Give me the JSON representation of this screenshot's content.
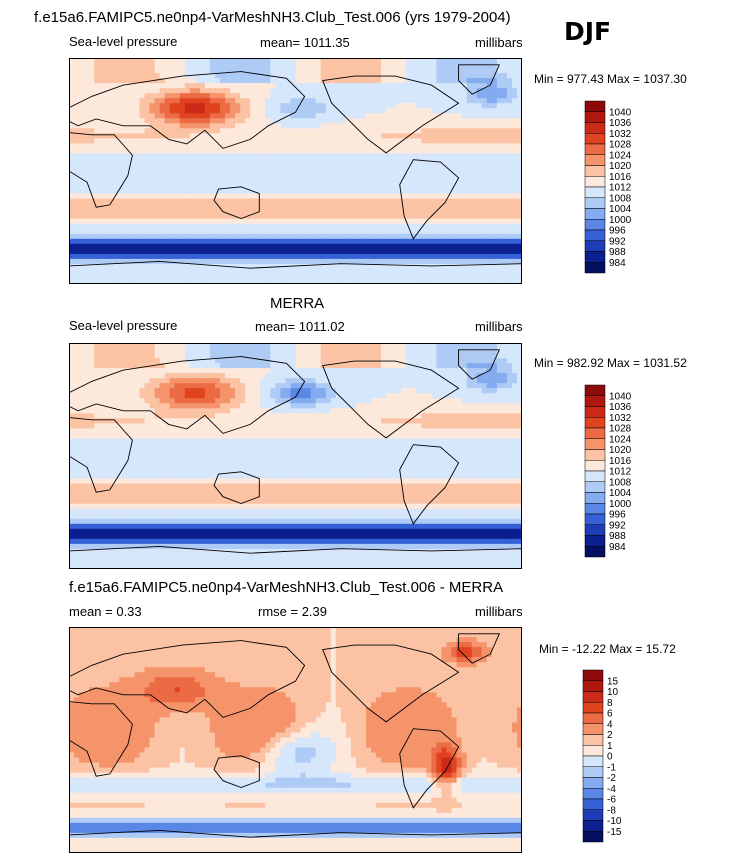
{
  "season": "DJF",
  "main_title": "f.e15a6.FAMIPC5.ne0np4-VarMeshNH3.Club_Test.006 (yrs 1979-2004)",
  "chart_data": [
    {
      "type": "heatmap",
      "id": "model",
      "title": "",
      "variable": "Sea-level pressure",
      "mean_label": "mean= 1011.35",
      "units": "millibars",
      "stats": "Min = 977.43 Max = 1037.30",
      "levels": [
        "1040",
        "1036",
        "1032",
        "1028",
        "1024",
        "1020",
        "1016",
        "1012",
        "1008",
        "1004",
        "1000",
        "996",
        "992",
        "988",
        "984"
      ],
      "colors": [
        "#8c0a0a",
        "#b0170e",
        "#cc2a18",
        "#e0441f",
        "#ec6a44",
        "#f5946b",
        "#fbc2a4",
        "#fde8dc",
        "#d6e6fb",
        "#aecbf5",
        "#84abef",
        "#5a86e6",
        "#3560d6",
        "#1d3cb6",
        "#0b1f8f",
        "#04105f"
      ]
    },
    {
      "type": "heatmap",
      "id": "obs",
      "title": "MERRA",
      "variable": "Sea-level pressure",
      "mean_label": "mean= 1011.02",
      "units": "millibars",
      "stats": "Min = 982.92 Max = 1031.52",
      "levels": [
        "1040",
        "1036",
        "1032",
        "1028",
        "1024",
        "1020",
        "1016",
        "1012",
        "1008",
        "1004",
        "1000",
        "996",
        "992",
        "988",
        "984"
      ],
      "colors": [
        "#8c0a0a",
        "#b0170e",
        "#cc2a18",
        "#e0441f",
        "#ec6a44",
        "#f5946b",
        "#fbc2a4",
        "#fde8dc",
        "#d6e6fb",
        "#aecbf5",
        "#84abef",
        "#5a86e6",
        "#3560d6",
        "#1d3cb6",
        "#0b1f8f",
        "#04105f"
      ]
    },
    {
      "type": "heatmap",
      "id": "diff",
      "title": "f.e15a6.FAMIPC5.ne0np4-VarMeshNH3.Club_Test.006 - MERRA",
      "mean_label": "mean =   0.33",
      "rmse_label": "rmse =   2.39",
      "units": "millibars",
      "stats": "Min = -12.22 Max =  15.72",
      "levels": [
        "15",
        "10",
        "8",
        "6",
        "4",
        "2",
        "1",
        "0",
        "-1",
        "-2",
        "-4",
        "-6",
        "-8",
        "-10",
        "-15"
      ],
      "colors": [
        "#8c0a0a",
        "#b0170e",
        "#cc2a18",
        "#e0441f",
        "#ec6a44",
        "#f5946b",
        "#fbc2a4",
        "#fde8dc",
        "#d6e6fb",
        "#aecbf5",
        "#84abef",
        "#5a86e6",
        "#3560d6",
        "#1d3cb6",
        "#0b1f8f",
        "#04105f"
      ]
    }
  ]
}
